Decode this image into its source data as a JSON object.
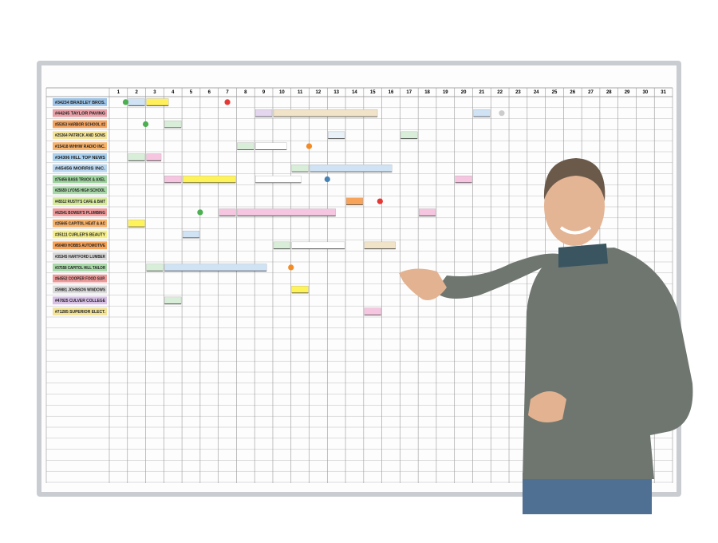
{
  "board": {
    "days": [
      1,
      2,
      3,
      4,
      5,
      6,
      7,
      8,
      9,
      10,
      11,
      12,
      13,
      14,
      15,
      16,
      17,
      18,
      19,
      20,
      21,
      22,
      23,
      24,
      25,
      26,
      27,
      28,
      29,
      30,
      31
    ],
    "jobs": [
      {
        "label": "#34234 BRADLEY BROS.",
        "color": "#9cc3e6"
      },
      {
        "label": "#44245 TAYLOR PAVING",
        "color": "#e8a0a8"
      },
      {
        "label": "#55353 HARBOR SCHOOL #2",
        "color": "#f4a460"
      },
      {
        "label": "#25364 PATRICK AND SONS",
        "color": "#f3e49a"
      },
      {
        "label": "#15418 WHHW RADIO INC.",
        "color": "#f7b26b"
      },
      {
        "label": "#34306 HILL TOP NEWS",
        "color": "#a9d0ee"
      },
      {
        "label": "#45456 MORRIS INC.",
        "color": "#b9d6ee"
      },
      {
        "label": "#75456 BASS TRUCK & AXEL",
        "color": "#9fd39f"
      },
      {
        "label": "#25659 LYONS HIGH SCHOOL",
        "color": "#a8d8a8"
      },
      {
        "label": "#45512 RUSTY'S CAFE & BAIT",
        "color": "#d6ea9c"
      },
      {
        "label": "#62541 BOWER'S PLUMBING",
        "color": "#ef9a9a"
      },
      {
        "label": "#25665 CAPITOL HEAT & AC",
        "color": "#f7b26b"
      },
      {
        "label": "#35111 CURLER'S BEAUTY",
        "color": "#f5ef8a"
      },
      {
        "label": "#50400 HOBBS AUTOMOTIVE",
        "color": "#f7a45a"
      },
      {
        "label": "#35345 HARTFORD LUMBER",
        "color": "#d8d8d8"
      },
      {
        "label": "#37558 CAPITOL HILL TAILOR",
        "color": "#a8d8a8"
      },
      {
        "label": "#64552 COOPER FOOD SUP.",
        "color": "#ef9a9a"
      },
      {
        "label": "#59881 JOHNSON WINDOWS",
        "color": "#dcdcdc"
      },
      {
        "label": "#47825 CULVER COLLEGE",
        "color": "#d7bfe6"
      },
      {
        "label": "#71285 SUPERIOR ELECT.",
        "color": "#f3e49a"
      }
    ]
  }
}
